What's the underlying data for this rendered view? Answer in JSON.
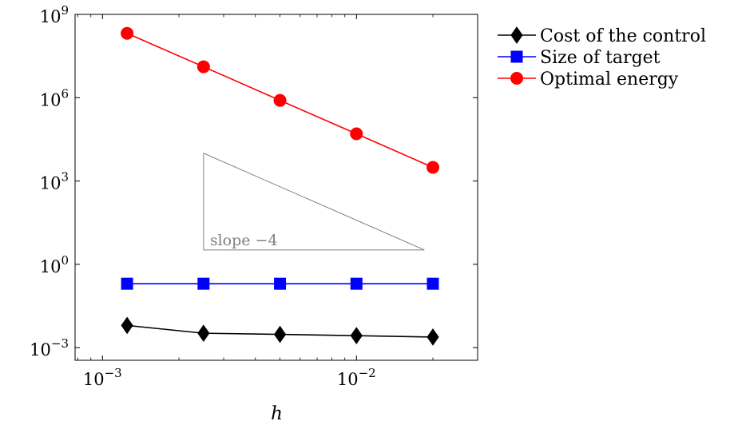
{
  "chart_data": {
    "type": "line",
    "xlabel": "h",
    "ylabel": "",
    "x_scale": "log",
    "y_scale": "log",
    "xlim": [
      0.00078,
      0.03
    ],
    "ylim": [
      0.00035,
      1000000000
    ],
    "grid": false,
    "legend_position": "outside-right",
    "x_ticks": [
      {
        "value": 0.001,
        "base": "10",
        "exp": "−3"
      },
      {
        "value": 0.01,
        "base": "10",
        "exp": "−2"
      }
    ],
    "y_ticks": [
      {
        "value": 0.001,
        "base": "10",
        "exp": "−3"
      },
      {
        "value": 1,
        "base": "10",
        "exp": "0"
      },
      {
        "value": 1000,
        "base": "10",
        "exp": "3"
      },
      {
        "value": 1000000,
        "base": "10",
        "exp": "6"
      },
      {
        "value": 1000000000,
        "base": "10",
        "exp": "9"
      }
    ],
    "x": [
      0.00125,
      0.0025,
      0.005,
      0.01,
      0.02
    ],
    "series": [
      {
        "name": "Cost of the control",
        "color": "#000000",
        "marker": "diamond",
        "values": [
          0.0063,
          0.0033,
          0.003,
          0.0027,
          0.0024
        ]
      },
      {
        "name": "Size of target",
        "color": "#0000ff",
        "marker": "square",
        "values": [
          0.2,
          0.2,
          0.2,
          0.2,
          0.2
        ]
      },
      {
        "name": "Optimal energy",
        "color": "#ff0000",
        "marker": "circle",
        "values": [
          208000000,
          13000000,
          800000,
          50000,
          3100
        ]
      }
    ],
    "annotations": [
      {
        "type": "slope-triangle",
        "text": "slope −4",
        "color": "#808080",
        "x_left": 0.0025,
        "x_right": 0.0185,
        "y_top": 10000,
        "y_bottom": 3.3
      }
    ]
  }
}
